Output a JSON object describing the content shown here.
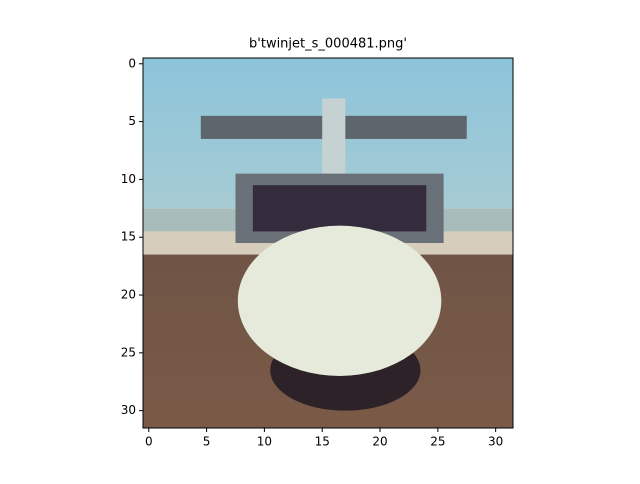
{
  "chart_data": {
    "type": "image",
    "title": "b'twinjet_s_000481.png'",
    "xlim": [
      -0.5,
      31.5
    ],
    "ylim": [
      31.5,
      -0.5
    ],
    "xticks": [
      0,
      5,
      10,
      15,
      20,
      25,
      30
    ],
    "yticks": [
      0,
      5,
      10,
      15,
      20,
      25,
      30
    ]
  }
}
